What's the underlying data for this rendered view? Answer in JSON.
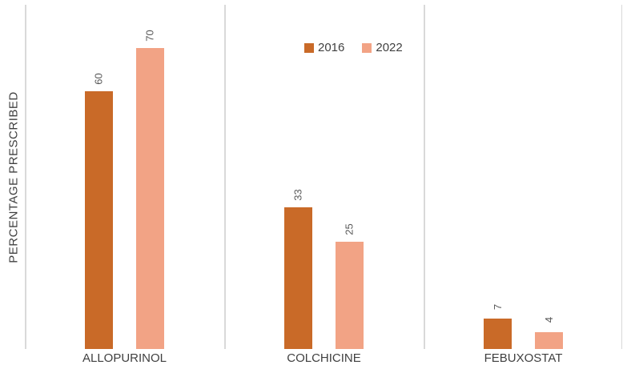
{
  "chart_data": {
    "type": "bar",
    "title": "",
    "categories": [
      "ALLOPURINOL",
      "COLCHICINE",
      "FEBUXOSTAT"
    ],
    "series": [
      {
        "name": "2016",
        "color": "#C96A28",
        "values": [
          60,
          33,
          7
        ]
      },
      {
        "name": "2022",
        "color": "#F2A385",
        "values": [
          70,
          25,
          4
        ]
      }
    ],
    "xlabel": "",
    "ylabel": "PERCENTAGE PRESCRIBED",
    "ylim": [
      0,
      80
    ],
    "y_axis_ticks_visible": false,
    "grid": "vertical category separators",
    "gridline_color": "#D9D9D9",
    "legend_position": "top-center",
    "data_labels": {
      "visible": true,
      "rotation_deg": -90,
      "color": "#595959"
    },
    "text_color": "#404040",
    "background_color": "#FFFFFF"
  }
}
